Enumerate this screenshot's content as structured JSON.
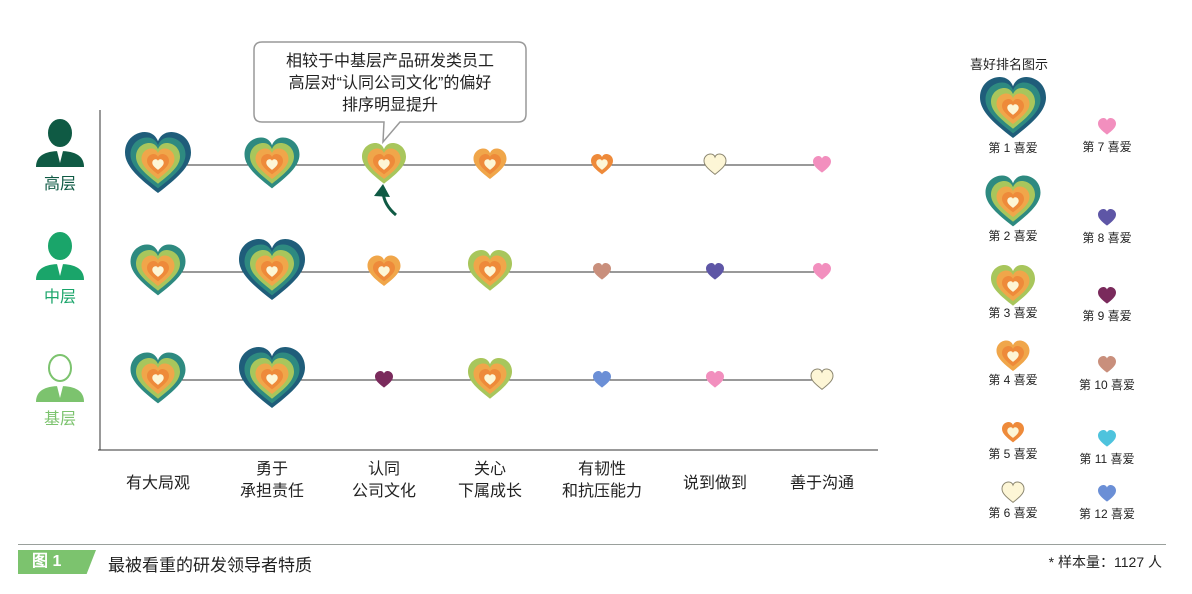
{
  "colors": {
    "ring1": "#1f5d7a",
    "ring2": "#2e8a80",
    "ring3": "#a8c65c",
    "ring4": "#f0a64a",
    "ring5": "#ee8a3a",
    "ring6": "#fdf6d6",
    "rank7": "#f28fbe",
    "rank8": "#5e56a6",
    "rank9": "#7a2a5c",
    "rank10": "#c98f7c",
    "rank11": "#4ec3dd",
    "rank12": "#6b8fd6",
    "senior": "#0f5a44",
    "middle": "#1aa56a",
    "junior": "#7cc36e"
  },
  "chart_data": {
    "type": "heatmap",
    "title": "最被看重的研发领导者特质",
    "rows": [
      "高层",
      "中层",
      "基层"
    ],
    "categories": [
      "有大局观",
      "勇于\n承担责任",
      "认同\n公司文化",
      "关心\n下属成长",
      "有韧性\n和抗压能力",
      "说到做到",
      "善于沟通"
    ],
    "value_meaning": "喜好排名 (1 = 最喜爱)",
    "ranks": [
      [
        1,
        2,
        3,
        4,
        5,
        6,
        7
      ],
      [
        2,
        1,
        4,
        3,
        10,
        8,
        7
      ],
      [
        2,
        1,
        9,
        3,
        12,
        7,
        6
      ]
    ],
    "annotation": "相较于中基层产品研发类员工\n高层对“认同公司文化”的偏好\n排序明显提升"
  },
  "legend": {
    "title": "喜好排名图示",
    "items": [
      {
        "rank": 1,
        "label": "第 1 喜爱"
      },
      {
        "rank": 2,
        "label": "第 2 喜爱"
      },
      {
        "rank": 3,
        "label": "第 3 喜爱"
      },
      {
        "rank": 4,
        "label": "第 4 喜爱"
      },
      {
        "rank": 5,
        "label": "第 5 喜爱"
      },
      {
        "rank": 6,
        "label": "第 6 喜爱"
      },
      {
        "rank": 7,
        "label": "第 7 喜爱"
      },
      {
        "rank": 8,
        "label": "第 8 喜爱"
      },
      {
        "rank": 9,
        "label": "第 9 喜爱"
      },
      {
        "rank": 10,
        "label": "第 10 喜爱"
      },
      {
        "rank": 11,
        "label": "第 11 喜爱"
      },
      {
        "rank": 12,
        "label": "第 12 喜爱"
      }
    ]
  },
  "footer": {
    "figure_tag": "图 1",
    "figure_title": "最被看重的研发领导者特质",
    "sample": "* 样本量：1127 人"
  }
}
